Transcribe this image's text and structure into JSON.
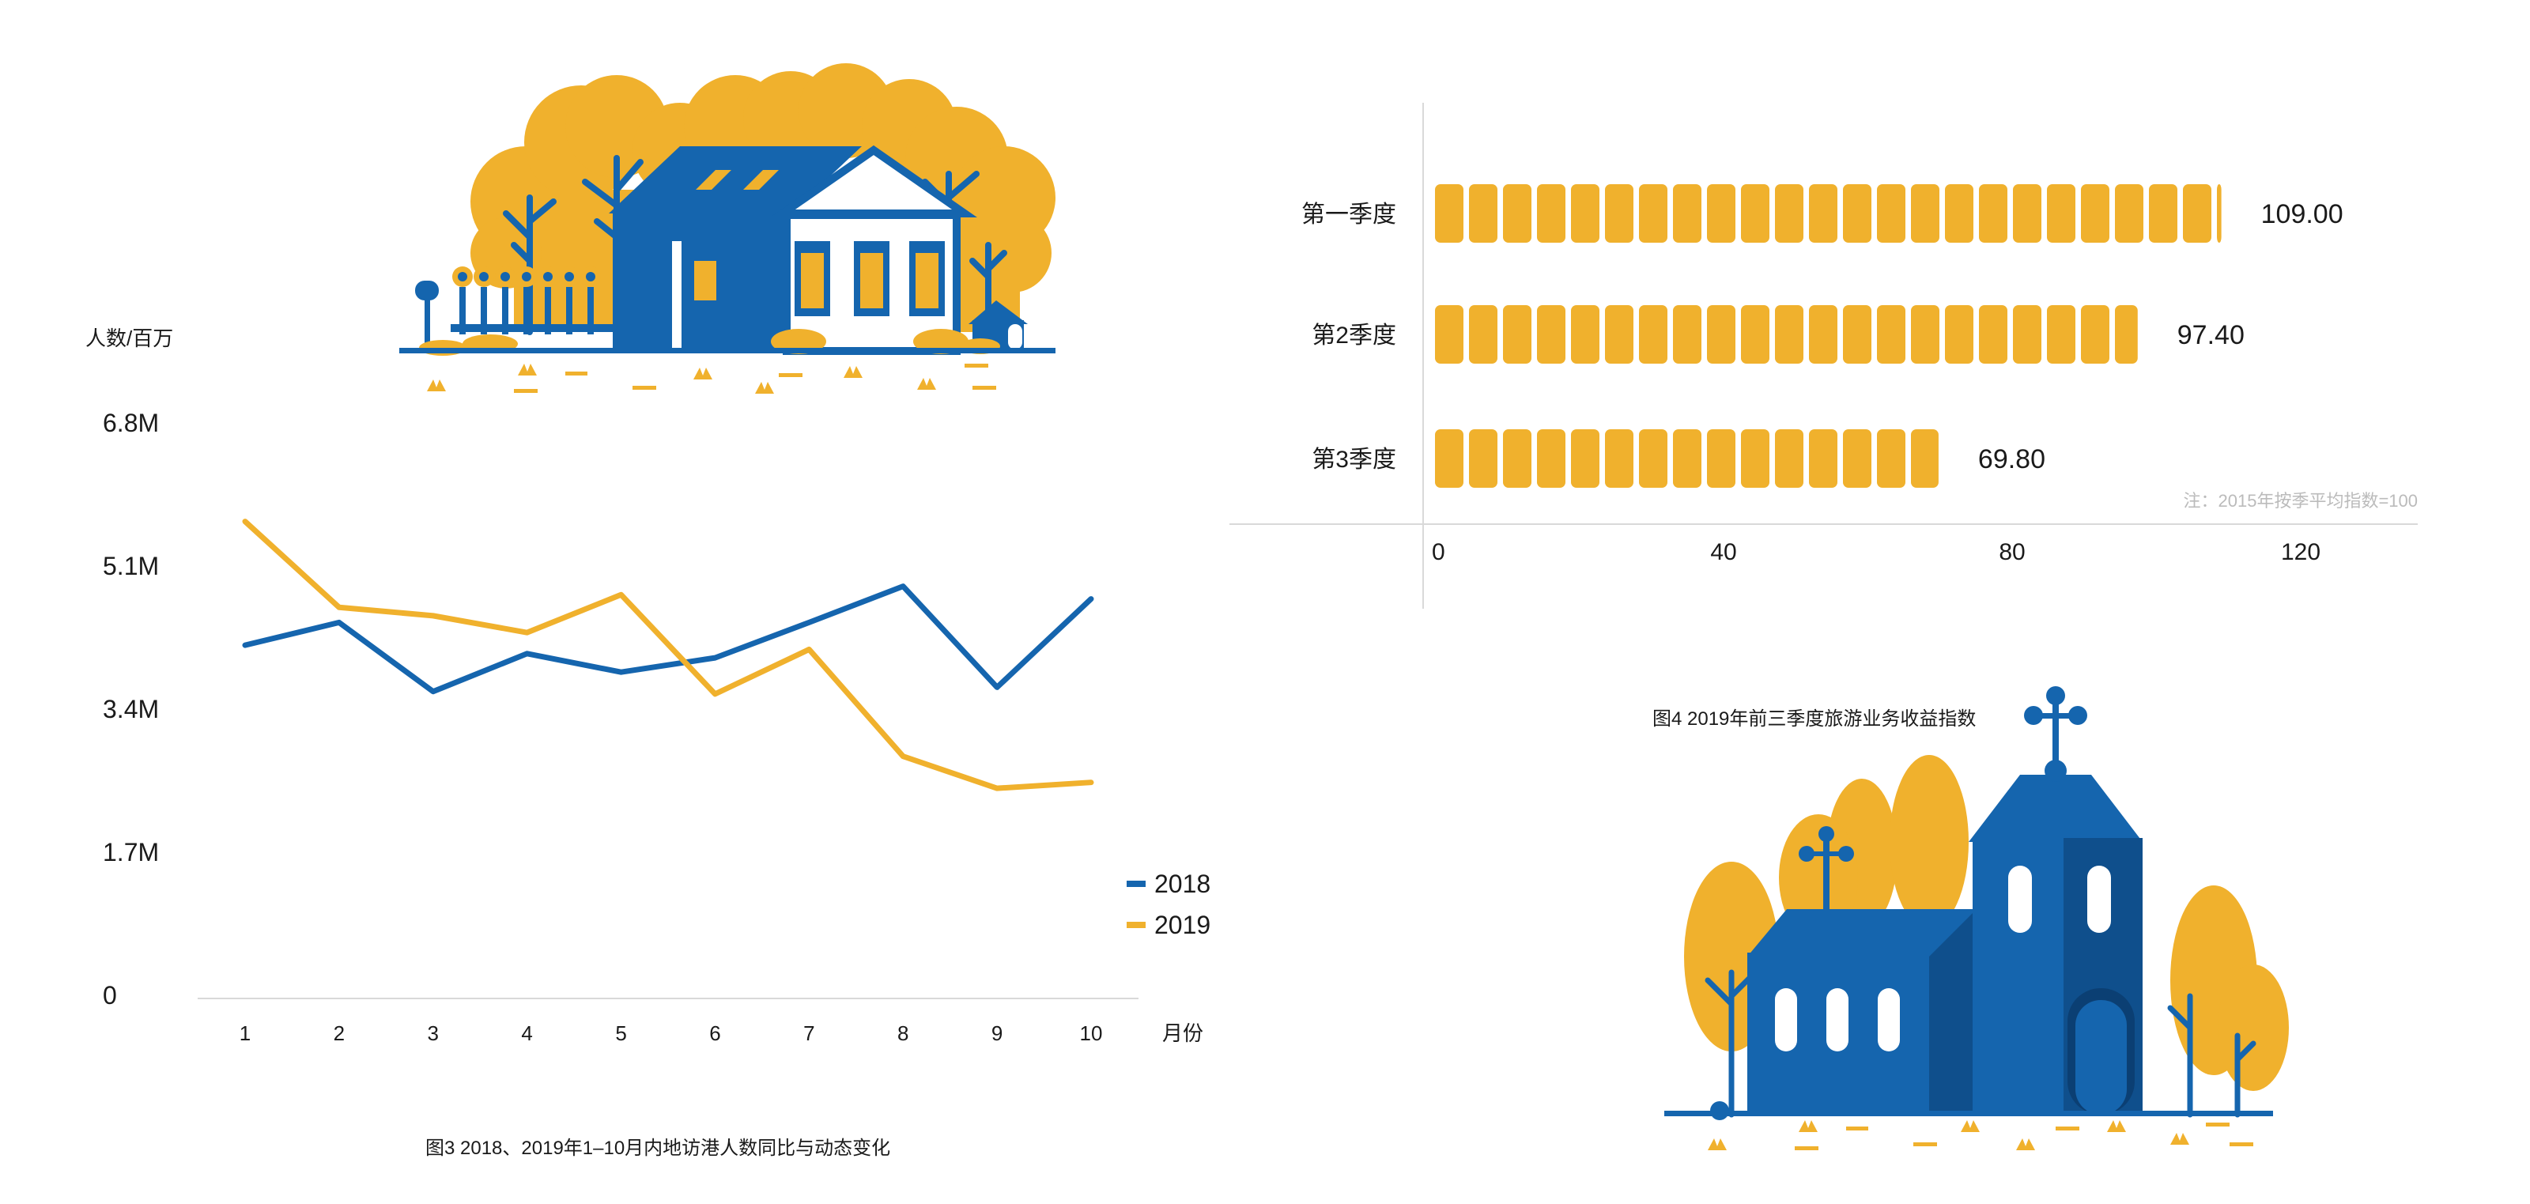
{
  "colors": {
    "blue": "#1565ae",
    "yellow": "#f0b12d",
    "axis": "#d9d9d9",
    "text": "#1a1a1a",
    "note": "#bbbbbb"
  },
  "chart_data": [
    {
      "type": "line",
      "title": "",
      "caption": "图3  2018、2019年1–10月内地访港人数同比与动态变化",
      "ylabel": "人数/百万",
      "xlabel": "月份",
      "x": [
        "1",
        "2",
        "3",
        "4",
        "5",
        "6",
        "7",
        "8",
        "9",
        "10"
      ],
      "yticks": [
        "0",
        "1.7M",
        "3.4M",
        "5.1M",
        "6.8M"
      ],
      "ylim": [
        0,
        6.8
      ],
      "legend_position": "right",
      "series": [
        {
          "name": "2018",
          "color": "#1565ae",
          "values": [
            4.15,
            4.42,
            3.6,
            4.05,
            3.83,
            4.0,
            4.42,
            4.85,
            3.65,
            4.7
          ]
        },
        {
          "name": "2019",
          "color": "#f0b12d",
          "values": [
            5.62,
            4.6,
            4.5,
            4.3,
            4.75,
            3.57,
            4.1,
            2.83,
            2.45,
            2.52
          ]
        }
      ]
    },
    {
      "type": "bar",
      "orientation": "horizontal",
      "caption": "图4  2019年前三季度旅游业务收益指数",
      "note": "注：2015年按季平均指数=100",
      "categories": [
        "第一季度",
        "第2季度",
        "第3季度"
      ],
      "values": [
        109.0,
        97.4,
        69.8
      ],
      "value_labels": [
        "109.00",
        "97.40",
        "69.80"
      ],
      "xticks": [
        "0",
        "40",
        "80",
        "120"
      ],
      "xlim": [
        0,
        120
      ],
      "color": "#f0b12d"
    }
  ]
}
